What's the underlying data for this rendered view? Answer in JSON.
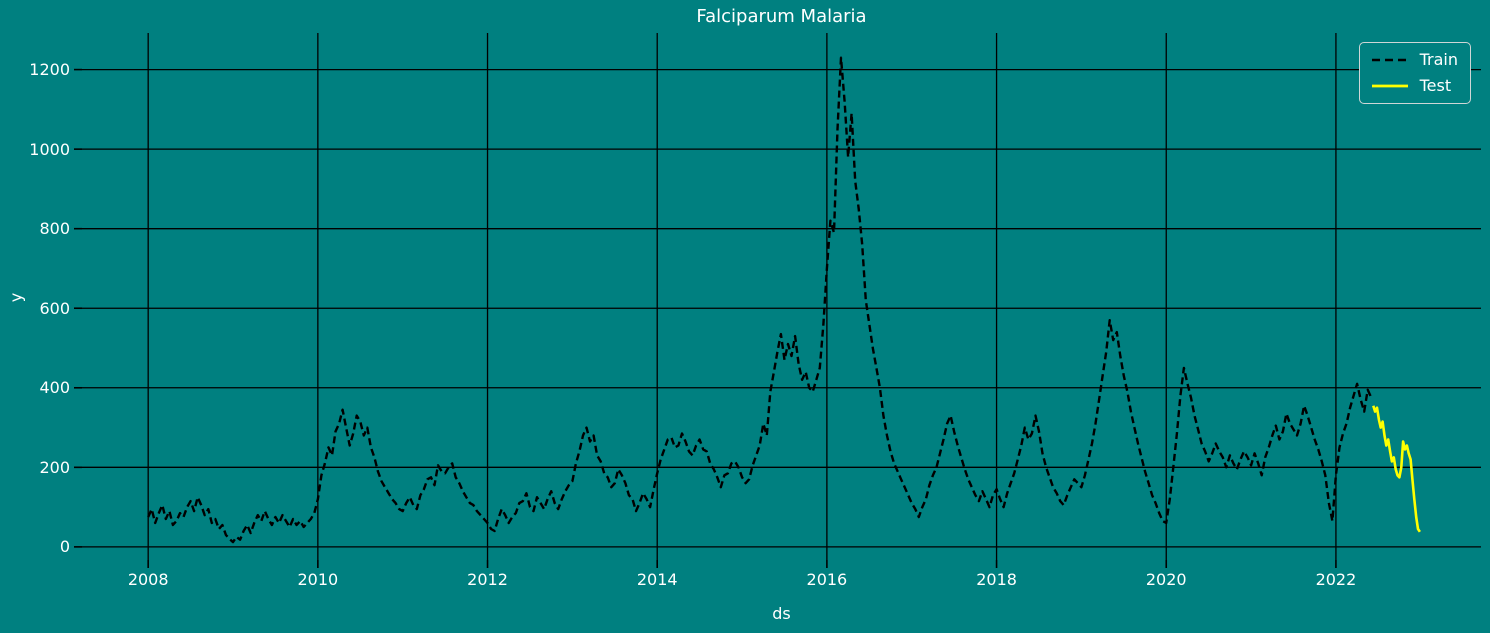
{
  "chart_data": {
    "type": "line",
    "title": "Falciparum Malaria",
    "xlabel": "ds",
    "ylabel": "y",
    "xlim": [
      2007.22,
      2023.71
    ],
    "ylim": [
      -33,
      1292
    ],
    "xticks": [
      2008,
      2010,
      2012,
      2014,
      2016,
      2018,
      2020,
      2022
    ],
    "yticks": [
      0,
      200,
      400,
      600,
      800,
      1000,
      1200
    ],
    "grid": true,
    "legend_position": "upper right",
    "colors": {
      "background": "#008080",
      "grid": "#000000",
      "text": "#ffffff",
      "train": "#000000",
      "test": "#ffff00"
    },
    "series": [
      {
        "name": "Train",
        "color": "#000000",
        "dash": true,
        "width": 2.4,
        "x0": 2008.0,
        "dx": 0.0416667,
        "values": [
          75,
          95,
          60,
          85,
          105,
          70,
          90,
          55,
          65,
          85,
          75,
          100,
          115,
          90,
          125,
          105,
          80,
          95,
          60,
          70,
          45,
          55,
          30,
          20,
          12,
          25,
          18,
          40,
          55,
          35,
          60,
          80,
          65,
          90,
          70,
          55,
          75,
          60,
          80,
          65,
          50,
          70,
          55,
          65,
          50,
          60,
          70,
          85,
          120,
          180,
          210,
          250,
          230,
          290,
          310,
          345,
          300,
          255,
          285,
          330,
          315,
          280,
          300,
          250,
          225,
          190,
          165,
          150,
          135,
          120,
          110,
          95,
          90,
          110,
          125,
          105,
          95,
          130,
          145,
          170,
          175,
          155,
          205,
          190,
          185,
          200,
          210,
          175,
          160,
          140,
          125,
          110,
          105,
          90,
          80,
          70,
          60,
          45,
          40,
          70,
          95,
          80,
          60,
          75,
          85,
          110,
          115,
          135,
          100,
          90,
          125,
          110,
          95,
          120,
          140,
          110,
          95,
          120,
          140,
          155,
          165,
          210,
          240,
          280,
          300,
          265,
          280,
          230,
          215,
          185,
          175,
          150,
          160,
          195,
          180,
          160,
          130,
          120,
          90,
          110,
          135,
          120,
          100,
          145,
          185,
          220,
          245,
          270,
          275,
          250,
          255,
          285,
          265,
          240,
          230,
          255,
          270,
          245,
          240,
          210,
          195,
          175,
          150,
          180,
          185,
          210,
          215,
          200,
          175,
          160,
          170,
          205,
          230,
          255,
          310,
          280,
          390,
          440,
          490,
          535,
          470,
          510,
          480,
          530,
          460,
          420,
          440,
          400,
          390,
          420,
          450,
          560,
          700,
          820,
          790,
          1050,
          1230,
          1120,
          980,
          1090,
          920,
          850,
          760,
          620,
          560,
          500,
          450,
          400,
          330,
          280,
          240,
          210,
          190,
          170,
          150,
          130,
          110,
          95,
          75,
          100,
          120,
          155,
          180,
          200,
          235,
          270,
          310,
          330,
          290,
          255,
          225,
          195,
          170,
          150,
          130,
          115,
          140,
          120,
          100,
          130,
          145,
          120,
          100,
          135,
          160,
          185,
          220,
          255,
          300,
          270,
          285,
          330,
          290,
          235,
          200,
          175,
          150,
          135,
          115,
          105,
          130,
          150,
          170,
          160,
          150,
          180,
          220,
          260,
          310,
          370,
          430,
          490,
          570,
          520,
          540,
          480,
          430,
          390,
          340,
          300,
          260,
          225,
          190,
          160,
          130,
          110,
          85,
          65,
          60,
          120,
          200,
          285,
          380,
          450,
          410,
          375,
          330,
          295,
          260,
          240,
          215,
          235,
          260,
          240,
          225,
          200,
          230,
          210,
          195,
          220,
          240,
          225,
          205,
          235,
          210,
          180,
          225,
          250,
          280,
          305,
          270,
          290,
          335,
          310,
          295,
          280,
          310,
          355,
          330,
          300,
          270,
          245,
          215,
          180,
          110,
          65,
          180,
          250,
          285,
          310,
          350,
          380,
          410,
          370,
          340,
          395,
          375
        ]
      },
      {
        "name": "Test",
        "color": "#ffff00",
        "dash": false,
        "width": 2.6,
        "x0": 2022.44,
        "dx": 0.022,
        "values": [
          355,
          340,
          350,
          320,
          300,
          315,
          280,
          255,
          270,
          240,
          215,
          225,
          195,
          180,
          175,
          200,
          265,
          245,
          255,
          235,
          220,
          170,
          120,
          75,
          45,
          38
        ]
      }
    ]
  }
}
